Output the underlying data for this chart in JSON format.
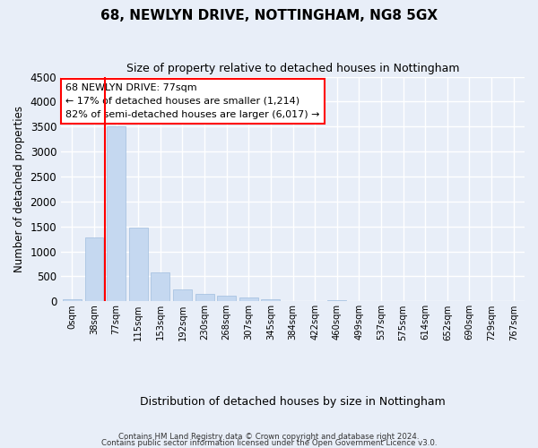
{
  "title1": "68, NEWLYN DRIVE, NOTTINGHAM, NG8 5GX",
  "title2": "Size of property relative to detached houses in Nottingham",
  "xlabel": "Distribution of detached houses by size in Nottingham",
  "ylabel": "Number of detached properties",
  "bar_labels": [
    "0sqm",
    "38sqm",
    "77sqm",
    "115sqm",
    "153sqm",
    "192sqm",
    "230sqm",
    "268sqm",
    "307sqm",
    "345sqm",
    "384sqm",
    "422sqm",
    "460sqm",
    "499sqm",
    "537sqm",
    "575sqm",
    "614sqm",
    "652sqm",
    "690sqm",
    "729sqm",
    "767sqm"
  ],
  "bar_values": [
    50,
    1280,
    3500,
    1480,
    580,
    240,
    150,
    110,
    75,
    40,
    0,
    0,
    30,
    15,
    0,
    0,
    0,
    0,
    0,
    0,
    0
  ],
  "bar_color": "#c5d8f0",
  "bar_edge_color": "#a0bede",
  "vline_index": 2,
  "annotation_line1": "68 NEWLYN DRIVE: 77sqm",
  "annotation_line2": "← 17% of detached houses are smaller (1,214)",
  "annotation_line3": "82% of semi-detached houses are larger (6,017) →",
  "ann_box_fc": "white",
  "ann_box_ec": "red",
  "vline_color": "red",
  "footnote1": "Contains HM Land Registry data © Crown copyright and database right 2024.",
  "footnote2": "Contains public sector information licensed under the Open Government Licence v3.0.",
  "ylim_max": 4500,
  "ytick_step": 500,
  "fig_bg": "#e8eef8",
  "ax_bg": "#e8eef8",
  "grid_color": "white",
  "title1_fontsize": 11,
  "title2_fontsize": 9
}
